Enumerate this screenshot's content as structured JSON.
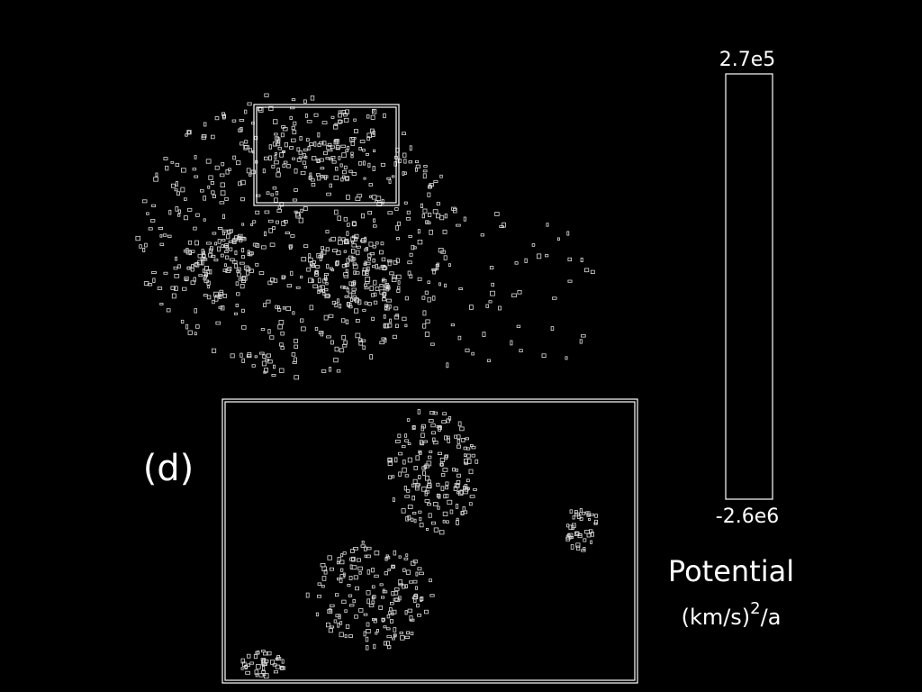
{
  "panel_label": "(d)",
  "colorbar": {
    "max_label": "2.7e5",
    "min_label": "-2.6e6",
    "title": "Potential",
    "unit": "(km/s)",
    "unit_exponent": "2",
    "unit_suffix": "/a"
  }
}
